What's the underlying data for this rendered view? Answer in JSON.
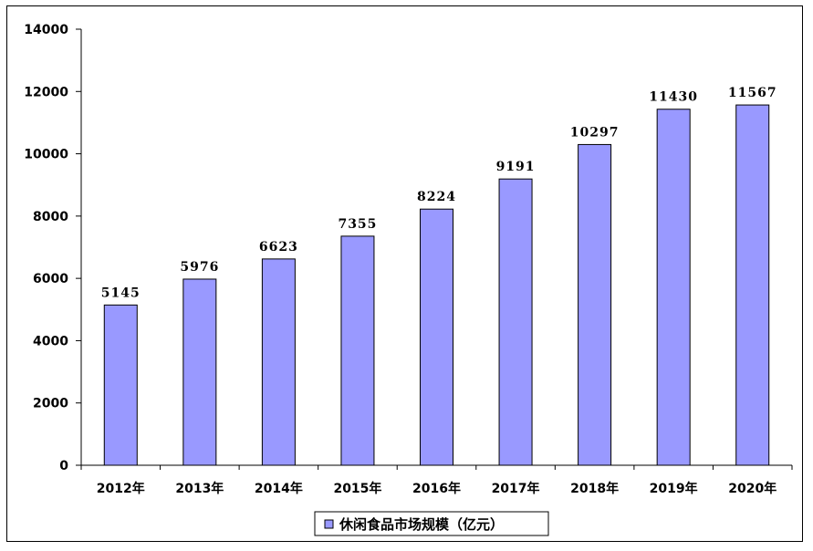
{
  "chart_data": {
    "type": "bar",
    "categories": [
      "2012年",
      "2013年",
      "2014年",
      "2015年",
      "2016年",
      "2017年",
      "2018年",
      "2019年",
      "2020年"
    ],
    "series": [
      {
        "name": "休闲食品市场规模（亿元）",
        "values": [
          5145,
          5976,
          6623,
          7355,
          8224,
          9191,
          10297,
          11430,
          11567
        ],
        "data_labels": [
          "5145",
          "5976",
          "6623",
          "7355",
          "8224",
          "9191",
          "10297",
          "11430",
          "11567"
        ],
        "color": "#9999ff"
      }
    ],
    "ylim": [
      0,
      14000
    ],
    "yticks": [
      0,
      2000,
      4000,
      6000,
      8000,
      10000,
      12000,
      14000
    ],
    "ytick_labels": [
      "0",
      "2000",
      "4000",
      "6000",
      "8000",
      "10000",
      "12000",
      "14000"
    ],
    "grid": false,
    "legend_position": "bottom-center"
  }
}
